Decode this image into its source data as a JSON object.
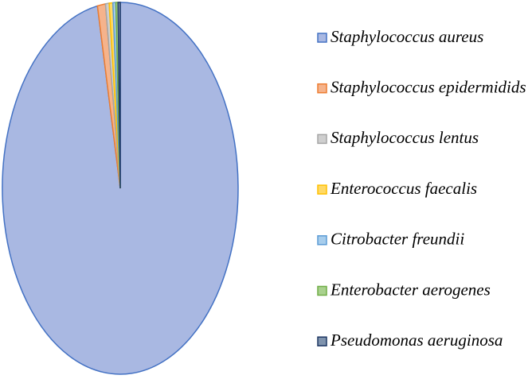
{
  "chart_data": {
    "type": "pie",
    "categories": [
      "Staphylococcus aureus",
      "Staphylococcus epidermidids",
      "Staphylococcus lentus",
      "Enterococcus faecalis",
      "Citrobacter freundii",
      "Enterobacter aerogenes",
      "Pseudomonas aeruginosa"
    ],
    "values": [
      96.9,
      1.1,
      0.5,
      0.5,
      0.4,
      0.3,
      0.3
    ],
    "colors": [
      "#a9b8e2",
      "#f5b38c",
      "#cfcfcf",
      "#ffd966",
      "#a7cdec",
      "#a9d18e",
      "#7f93ad"
    ],
    "edge_colors": [
      "#4472c4",
      "#ed7d31",
      "#a5a5a5",
      "#ffc000",
      "#5b9bd5",
      "#70ad47",
      "#1f3864"
    ]
  }
}
